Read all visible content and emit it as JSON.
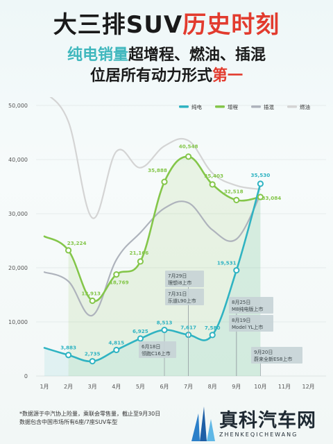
{
  "title": {
    "line1_a": "大三排SUV",
    "line1_b": "历史时刻",
    "line2_a": "纯电销量",
    "line2_b": "超增程、燃油、插混",
    "line3_a": "位居所有动力形式",
    "line3_b": "第一"
  },
  "footnote": {
    "line1": "*数据源于中汽协上险量，乘联会零售量，截止至9月30日",
    "line2": "数据包含中国市场所有6座/7座SUV车型"
  },
  "logo": {
    "name": "真科汽车网",
    "sub": "ZHENKEQICHEWANG"
  },
  "colors": {
    "ev": "#2fb3c2",
    "erev": "#84c64a",
    "phev": "#aeb3bc",
    "ice": "#d4d4d4"
  },
  "chart_data": {
    "type": "line",
    "x": [
      "1月",
      "2月",
      "3月",
      "4月",
      "5月",
      "6月",
      "7月",
      "8月",
      "9月",
      "10月",
      "11月",
      "12月"
    ],
    "ylim": [
      0,
      50000
    ],
    "yticks": [
      "0",
      "10,000",
      "20,000",
      "30,000",
      "40,000",
      "50,000"
    ],
    "ytick_values": [
      0,
      10000,
      20000,
      30000,
      40000,
      50000
    ],
    "legend_position": "top-right",
    "series": [
      {
        "name": "纯电",
        "values": [
          5200,
          3883,
          2735,
          4815,
          6925,
          8513,
          7617,
          7580,
          19531,
          35530,
          null,
          null
        ],
        "labels": [
          "",
          "3,883",
          "2,735",
          "4,815",
          "6,925",
          "8,513",
          "7,617",
          "7,580",
          "19,531",
          "35,530",
          "",
          ""
        ]
      },
      {
        "name": "增程",
        "values": [
          25800,
          23224,
          13913,
          18769,
          21166,
          35888,
          40548,
          35403,
          32518,
          33084,
          null,
          null
        ],
        "labels": [
          "",
          "23,224",
          "13,913",
          "18,769",
          "21,166",
          "35,888",
          "40,548",
          "35,403",
          "32,518",
          "33,084",
          "",
          ""
        ]
      },
      {
        "name": "插混",
        "values": [
          19200,
          17500,
          11200,
          21500,
          26500,
          31000,
          32000,
          27000,
          25300,
          33500,
          null,
          null
        ]
      },
      {
        "name": "燃油",
        "values": [
          52500,
          47000,
          29200,
          41500,
          38500,
          42500,
          43500,
          37500,
          35200,
          34500,
          null,
          null
        ]
      }
    ],
    "annotations": [
      {
        "month": 6,
        "lines": [
          "6月18日",
          "领跑C16上市"
        ]
      },
      {
        "month": 7,
        "lines": [
          "7月29日",
          "理想i8上市"
        ]
      },
      {
        "month": 7,
        "lines": [
          "7月31日",
          "乐道L90上市"
        ]
      },
      {
        "month": 9,
        "lines": [
          "8月25日",
          "M8纯电版上市"
        ]
      },
      {
        "month": 9,
        "lines": [
          "8月19日",
          "Model YL上市"
        ]
      },
      {
        "month": 10,
        "lines": [
          "9月20日",
          "蔚来全新ES8上市"
        ]
      }
    ]
  }
}
